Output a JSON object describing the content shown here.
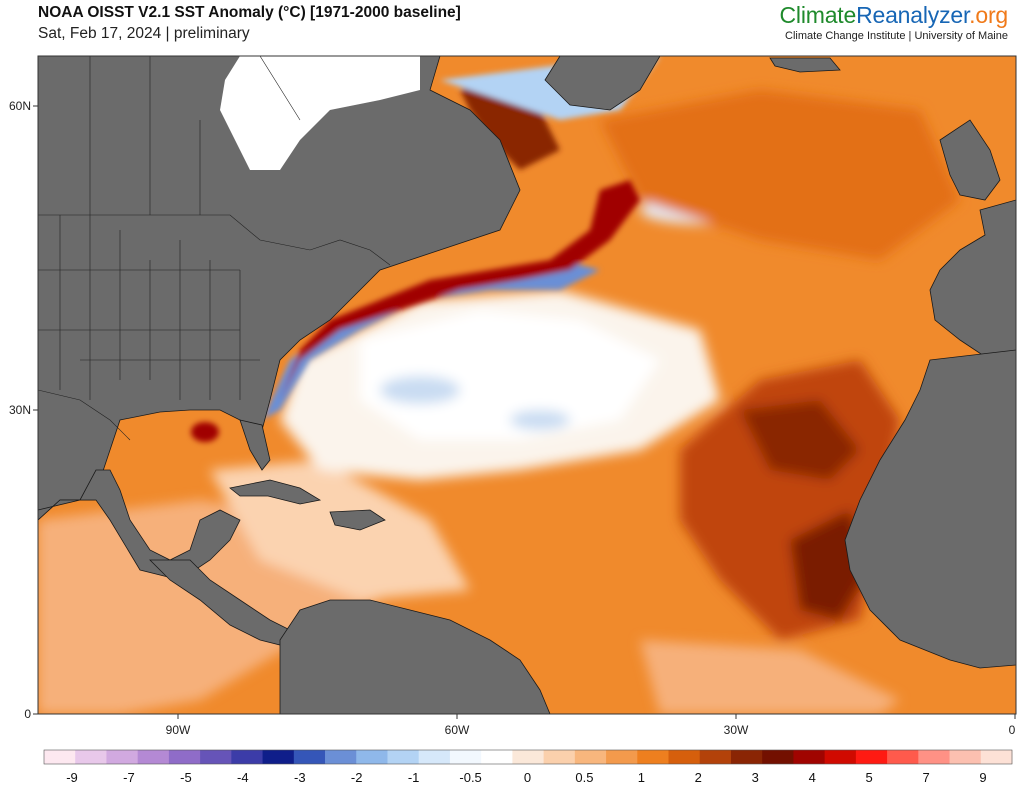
{
  "header": {
    "title": "NOAA OISST V2.1 SST Anomaly (°C) [1971-2000 baseline]",
    "subtitle": "Sat, Feb 17, 2024 | preliminary",
    "brand_part1": "Climate",
    "brand_part2": "Reanalyzer",
    "brand_part3": ".org",
    "brand_sub": "Climate Change Institute | University of Maine"
  },
  "map": {
    "lat_ticks": [
      "60N",
      "30N",
      "0"
    ],
    "lon_ticks": [
      "90W",
      "60W",
      "30W",
      "0"
    ],
    "colors": {
      "land": "#6b6b6b",
      "ocean_warm": "#f08a2c",
      "ocean_hot": "#c0450c",
      "ocean_very_hot": "#8a1c06",
      "ocean_neutral": "#ffffff",
      "ocean_cool": "#b8d4f0",
      "ice": "#ffffff"
    }
  },
  "colorbar": {
    "labels": [
      "-9",
      "-7",
      "-5",
      "-4",
      "-3",
      "-2",
      "-1",
      "-0.5",
      "0",
      "0.5",
      "1",
      "2",
      "3",
      "4",
      "5",
      "7",
      "9"
    ],
    "colors": [
      "#fde8f0",
      "#e8c8ea",
      "#d1a9e0",
      "#b489d4",
      "#8f6cc8",
      "#6654b8",
      "#3c3ca8",
      "#0f1e8a",
      "#3556b8",
      "#6b8fd6",
      "#8fb8ea",
      "#b3d3f4",
      "#d6e8fa",
      "#f2f8fe",
      "#ffffff",
      "#fbe8d9",
      "#fbd0ac",
      "#f8b67d",
      "#f39a4c",
      "#ee7f1f",
      "#d65f0c",
      "#b3420a",
      "#8a2504",
      "#731000",
      "#a00400",
      "#d00a00",
      "#ff1a12",
      "#ff5a4c",
      "#ff9185",
      "#fcc0b0",
      "#fde1d6"
    ]
  }
}
